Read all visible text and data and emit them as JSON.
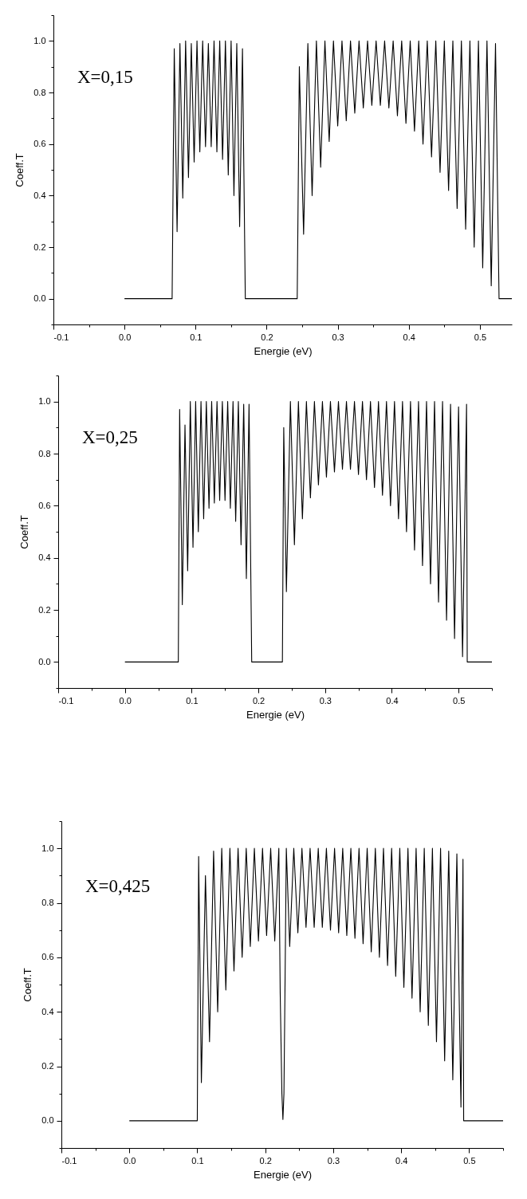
{
  "chart_data": [
    {
      "type": "line",
      "xlabel": "Energie (eV)",
      "ylabel": "Coeff.T",
      "annotations": [
        "X=0,15"
      ],
      "xlim": [
        -0.1,
        0.545
      ],
      "ylim": [
        -0.1,
        1.1
      ],
      "xticks": [
        -0.1,
        {
          "value": -0.05,
          "label": null
        },
        {
          "value": 0,
          "label": "0.0"
        },
        {
          "value": 0.05,
          "label": null
        },
        0.1,
        {
          "value": 0.15,
          "label": null
        },
        0.2,
        {
          "value": 0.25,
          "label": null
        },
        0.3,
        {
          "value": 0.35,
          "label": null
        },
        0.4,
        {
          "value": 0.45,
          "label": null
        },
        0.5
      ],
      "yticks": [
        {
          "value": -0.1,
          "label": null
        },
        {
          "value": 0,
          "label": "0.0"
        },
        {
          "value": 0.1,
          "label": null
        },
        0.2,
        {
          "value": 0.3,
          "label": null
        },
        0.4,
        {
          "value": 0.5,
          "label": null
        },
        0.6,
        {
          "value": 0.7,
          "label": null
        },
        0.8,
        {
          "value": 0.9,
          "label": null
        },
        {
          "value": 1,
          "label": "1.0"
        },
        {
          "value": 1.1,
          "label": null
        }
      ],
      "series": [
        {
          "color": "#000000",
          "x": [
            0,
            0.067,
            0.07,
            0.074,
            0.078,
            0.082,
            0.086,
            0.09,
            0.094,
            0.098,
            0.102,
            0.106,
            0.11,
            0.114,
            0.118,
            0.122,
            0.126,
            0.13,
            0.134,
            0.138,
            0.142,
            0.146,
            0.15,
            0.154,
            0.158,
            0.162,
            0.166,
            0.17,
            0.243,
            0.246,
            0.252,
            0.258,
            0.264,
            0.27,
            0.276,
            0.282,
            0.288,
            0.294,
            0.3,
            0.306,
            0.312,
            0.318,
            0.324,
            0.33,
            0.336,
            0.342,
            0.348,
            0.354,
            0.36,
            0.366,
            0.372,
            0.378,
            0.384,
            0.39,
            0.396,
            0.402,
            0.408,
            0.414,
            0.42,
            0.426,
            0.432,
            0.438,
            0.444,
            0.45,
            0.456,
            0.462,
            0.468,
            0.474,
            0.48,
            0.486,
            0.492,
            0.498,
            0.504,
            0.51,
            0.516,
            0.522,
            0.527,
            0.545
          ],
          "values": [
            0,
            0,
            0.97,
            0.26,
            0.99,
            0.39,
            1.0,
            0.47,
            0.99,
            0.53,
            1.0,
            0.57,
            1.0,
            0.59,
            0.99,
            0.59,
            1.0,
            0.57,
            1.0,
            0.54,
            1.0,
            0.48,
            1.0,
            0.4,
            0.99,
            0.28,
            0.97,
            0,
            0,
            0.9,
            0.25,
            0.99,
            0.4,
            1.0,
            0.51,
            1.0,
            0.61,
            1.0,
            0.67,
            1.0,
            0.69,
            1.0,
            0.72,
            1.0,
            0.74,
            1.0,
            0.75,
            1.0,
            0.75,
            1.0,
            0.74,
            1.0,
            0.71,
            1.0,
            0.68,
            1.0,
            0.65,
            1.0,
            0.6,
            1.0,
            0.55,
            1.0,
            0.49,
            1.0,
            0.42,
            1.0,
            0.35,
            1.0,
            0.27,
            1.0,
            0.2,
            1.0,
            0.12,
            1.0,
            0.05,
            0.99,
            0,
            0
          ]
        }
      ]
    },
    {
      "type": "line",
      "xlabel": "Energie (eV)",
      "ylabel": "Coeff.T",
      "annotations": [
        "X=0,25"
      ],
      "xlim": [
        -0.1,
        0.55
      ],
      "ylim": [
        -0.1,
        1.1
      ],
      "xticks": [
        -0.1,
        {
          "value": -0.05,
          "label": null
        },
        {
          "value": 0,
          "label": "0.0"
        },
        {
          "value": 0.05,
          "label": null
        },
        0.1,
        {
          "value": 0.15,
          "label": null
        },
        0.2,
        {
          "value": 0.25,
          "label": null
        },
        0.3,
        {
          "value": 0.35,
          "label": null
        },
        0.4,
        {
          "value": 0.45,
          "label": null
        },
        0.5,
        {
          "value": 0.55,
          "label": null
        }
      ],
      "yticks": [
        {
          "value": -0.1,
          "label": null
        },
        {
          "value": 0,
          "label": "0.0"
        },
        {
          "value": 0.1,
          "label": null
        },
        0.2,
        {
          "value": 0.3,
          "label": null
        },
        0.4,
        {
          "value": 0.5,
          "label": null
        },
        0.6,
        {
          "value": 0.7,
          "label": null
        },
        0.8,
        {
          "value": 0.9,
          "label": null
        },
        {
          "value": 1,
          "label": "1.0"
        },
        {
          "value": 1.1,
          "label": null
        }
      ],
      "series": [
        {
          "color": "#000000",
          "x": [
            0,
            0.08,
            0.082,
            0.086,
            0.09,
            0.094,
            0.098,
            0.102,
            0.106,
            0.11,
            0.114,
            0.118,
            0.122,
            0.126,
            0.13,
            0.134,
            0.138,
            0.142,
            0.146,
            0.15,
            0.154,
            0.158,
            0.162,
            0.166,
            0.17,
            0.174,
            0.178,
            0.182,
            0.186,
            0.19,
            0.236,
            0.238,
            0.242,
            0.248,
            0.254,
            0.26,
            0.266,
            0.272,
            0.278,
            0.284,
            0.29,
            0.296,
            0.302,
            0.308,
            0.314,
            0.32,
            0.326,
            0.332,
            0.338,
            0.344,
            0.35,
            0.356,
            0.362,
            0.368,
            0.374,
            0.38,
            0.386,
            0.392,
            0.398,
            0.404,
            0.41,
            0.416,
            0.422,
            0.428,
            0.434,
            0.44,
            0.446,
            0.452,
            0.458,
            0.464,
            0.47,
            0.476,
            0.482,
            0.488,
            0.494,
            0.5,
            0.506,
            0.512,
            0.513,
            0.55
          ],
          "values": [
            0,
            0,
            0.97,
            0.22,
            0.91,
            0.35,
            1.0,
            0.44,
            1.0,
            0.5,
            1.0,
            0.55,
            1.0,
            0.59,
            1.0,
            0.61,
            1.0,
            0.62,
            1.0,
            0.62,
            1.0,
            0.59,
            1.0,
            0.54,
            1.0,
            0.45,
            0.99,
            0.32,
            0.99,
            0,
            0,
            0.9,
            0.27,
            1.0,
            0.45,
            1.0,
            0.55,
            1.0,
            0.63,
            1.0,
            0.68,
            1.0,
            0.71,
            1.0,
            0.73,
            1.0,
            0.74,
            1.0,
            0.74,
            1.0,
            0.72,
            1.0,
            0.7,
            1.0,
            0.67,
            1.0,
            0.64,
            1.0,
            0.6,
            1.0,
            0.55,
            1.0,
            0.5,
            1.0,
            0.43,
            1.0,
            0.37,
            1.0,
            0.3,
            1.0,
            0.23,
            1.0,
            0.16,
            0.99,
            0.09,
            0.98,
            0.02,
            0.99,
            0,
            0
          ]
        }
      ]
    },
    {
      "type": "line",
      "xlabel": "Energie (eV)",
      "ylabel": "Coeff.T",
      "annotations": [
        "X=0,425"
      ],
      "xlim": [
        -0.1,
        0.55
      ],
      "ylim": [
        -0.1,
        1.1
      ],
      "xticks": [
        -0.1,
        {
          "value": -0.05,
          "label": null
        },
        {
          "value": 0,
          "label": "0.0"
        },
        {
          "value": 0.05,
          "label": null
        },
        0.1,
        {
          "value": 0.15,
          "label": null
        },
        0.2,
        {
          "value": 0.25,
          "label": null
        },
        0.3,
        {
          "value": 0.35,
          "label": null
        },
        0.4,
        {
          "value": 0.45,
          "label": null
        },
        0.5,
        {
          "value": 0.55,
          "label": null
        }
      ],
      "yticks": [
        {
          "value": -0.1,
          "label": null
        },
        {
          "value": 0,
          "label": "0.0"
        },
        {
          "value": 0.1,
          "label": null
        },
        0.2,
        {
          "value": 0.3,
          "label": null
        },
        0.4,
        {
          "value": 0.5,
          "label": null
        },
        0.6,
        {
          "value": 0.7,
          "label": null
        },
        0.8,
        {
          "value": 0.9,
          "label": null
        },
        {
          "value": 1,
          "label": "1.0"
        },
        {
          "value": 1.1,
          "label": null
        }
      ],
      "series": [
        {
          "color": "#000000",
          "x": [
            0,
            0.1,
            0.102,
            0.106,
            0.112,
            0.118,
            0.124,
            0.13,
            0.136,
            0.142,
            0.148,
            0.154,
            0.16,
            0.166,
            0.172,
            0.178,
            0.184,
            0.19,
            0.196,
            0.202,
            0.208,
            0.214,
            0.22,
            0.222,
            0.2245,
            0.226,
            0.2275,
            0.229,
            0.231,
            0.236,
            0.242,
            0.248,
            0.254,
            0.26,
            0.266,
            0.272,
            0.278,
            0.284,
            0.29,
            0.296,
            0.302,
            0.308,
            0.314,
            0.32,
            0.326,
            0.332,
            0.338,
            0.344,
            0.35,
            0.356,
            0.362,
            0.368,
            0.374,
            0.38,
            0.386,
            0.392,
            0.398,
            0.404,
            0.41,
            0.416,
            0.422,
            0.428,
            0.434,
            0.44,
            0.446,
            0.452,
            0.458,
            0.464,
            0.47,
            0.476,
            0.482,
            0.488,
            0.491,
            0.492,
            0.55
          ],
          "values": [
            0,
            0,
            0.97,
            0.14,
            0.9,
            0.29,
            0.99,
            0.4,
            1.0,
            0.48,
            1.0,
            0.55,
            1.0,
            0.6,
            1.0,
            0.64,
            1.0,
            0.66,
            1.0,
            0.68,
            1.0,
            0.66,
            1.0,
            0.47,
            0.1,
            0.005,
            0.1,
            0.47,
            1.0,
            0.64,
            1.0,
            0.69,
            1.0,
            0.71,
            1.0,
            0.71,
            1.0,
            0.71,
            1.0,
            0.7,
            1.0,
            0.69,
            1.0,
            0.68,
            1.0,
            0.67,
            1.0,
            0.65,
            1.0,
            0.62,
            1.0,
            0.6,
            1.0,
            0.57,
            1.0,
            0.53,
            1.0,
            0.49,
            1.0,
            0.45,
            1.0,
            0.4,
            1.0,
            0.35,
            1.0,
            0.29,
            1.0,
            0.22,
            0.99,
            0.15,
            0.98,
            0.05,
            0.96,
            0,
            0
          ]
        }
      ]
    }
  ]
}
